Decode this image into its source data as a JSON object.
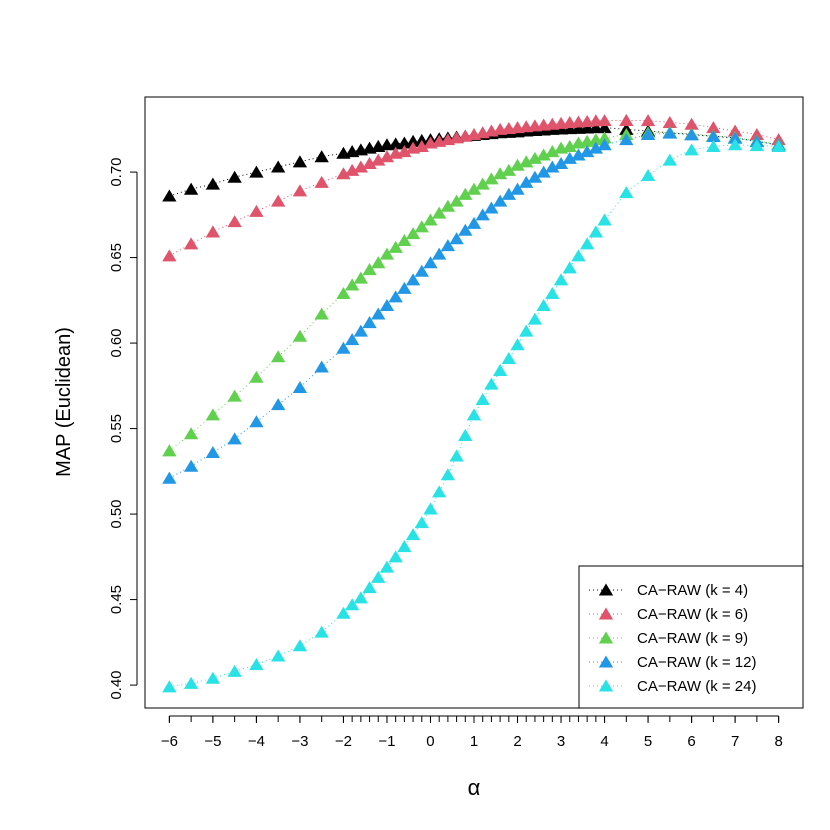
{
  "chart_data": {
    "type": "scatter-line",
    "x_label": "α",
    "y_label": "MAP (Euclidean)",
    "x": [
      -6,
      -5.5,
      -5,
      -4.5,
      -4,
      -3.5,
      -3,
      -2.5,
      -2,
      -1.8,
      -1.6,
      -1.4,
      -1.2,
      -1,
      -0.8,
      -0.6,
      -0.4,
      -0.2,
      0,
      0.2,
      0.4,
      0.6,
      0.8,
      1,
      1.2,
      1.4,
      1.6,
      1.8,
      2,
      2.2,
      2.4,
      2.6,
      2.8,
      3,
      3.2,
      3.4,
      3.6,
      3.8,
      4,
      4.5,
      5,
      5.5,
      6,
      6.5,
      7,
      7.5,
      8
    ],
    "xlim": [
      -6.56,
      8.56
    ],
    "xticks": [
      {
        "value": -6,
        "label": "−6"
      },
      {
        "value": -5,
        "label": "−5"
      },
      {
        "value": -4,
        "label": "−4"
      },
      {
        "value": -3,
        "label": "−3"
      },
      {
        "value": -2,
        "label": "−2"
      },
      {
        "value": -1,
        "label": "−1"
      },
      0,
      1,
      2,
      3,
      4,
      5,
      6,
      7,
      8
    ],
    "ylim": [
      0.3866,
      0.7439
    ],
    "yticks": [
      {
        "value": 0.4,
        "label": "0.40"
      },
      {
        "value": 0.45,
        "label": "0.45"
      },
      {
        "value": 0.5,
        "label": "0.50"
      },
      {
        "value": 0.55,
        "label": "0.55"
      },
      {
        "value": 0.6,
        "label": "0.60"
      },
      {
        "value": 0.65,
        "label": "0.65"
      },
      {
        "value": 0.7,
        "label": "0.70"
      }
    ],
    "legend_position": "bottom-right",
    "series": [
      {
        "name": "CA−RAW (k = 4)",
        "color": "#000000",
        "values": [
          0.686,
          0.69,
          0.693,
          0.697,
          0.7,
          0.703,
          0.706,
          0.709,
          0.711,
          0.712,
          0.713,
          0.714,
          0.715,
          0.716,
          0.7165,
          0.717,
          0.718,
          0.7185,
          0.719,
          0.7195,
          0.72,
          0.7205,
          0.721,
          0.7215,
          0.722,
          0.7225,
          0.723,
          0.7232,
          0.7235,
          0.724,
          0.7243,
          0.7246,
          0.725,
          0.7252,
          0.7254,
          0.7256,
          0.7258,
          0.726,
          0.726,
          0.725,
          0.724,
          0.723,
          0.722,
          0.721,
          0.72,
          0.718,
          0.716
        ]
      },
      {
        "name": "CA−RAW (k = 6)",
        "color": "#DF536B",
        "values": [
          0.651,
          0.658,
          0.665,
          0.671,
          0.677,
          0.683,
          0.689,
          0.694,
          0.699,
          0.701,
          0.703,
          0.705,
          0.707,
          0.709,
          0.711,
          0.712,
          0.714,
          0.715,
          0.717,
          0.718,
          0.719,
          0.72,
          0.721,
          0.722,
          0.723,
          0.724,
          0.725,
          0.7255,
          0.726,
          0.7265,
          0.727,
          0.7275,
          0.728,
          0.7285,
          0.729,
          0.7293,
          0.7296,
          0.73,
          0.7301,
          0.7302,
          0.7301,
          0.729,
          0.728,
          0.726,
          0.724,
          0.722,
          0.719
        ]
      },
      {
        "name": "CA−RAW (k = 9)",
        "color": "#61D04F",
        "values": [
          0.537,
          0.547,
          0.558,
          0.569,
          0.58,
          0.592,
          0.604,
          0.617,
          0.629,
          0.634,
          0.638,
          0.643,
          0.647,
          0.652,
          0.656,
          0.66,
          0.664,
          0.668,
          0.672,
          0.676,
          0.68,
          0.683,
          0.687,
          0.69,
          0.693,
          0.696,
          0.699,
          0.701,
          0.704,
          0.706,
          0.708,
          0.71,
          0.712,
          0.714,
          0.715,
          0.717,
          0.718,
          0.719,
          0.72,
          0.722,
          0.723,
          0.7232,
          0.7222,
          0.7212,
          0.7202,
          0.7182,
          0.7162
        ]
      },
      {
        "name": "CA−RAW (k = 12)",
        "color": "#2297E6",
        "values": [
          0.521,
          0.528,
          0.536,
          0.544,
          0.554,
          0.564,
          0.574,
          0.586,
          0.597,
          0.602,
          0.607,
          0.612,
          0.617,
          0.622,
          0.627,
          0.632,
          0.637,
          0.642,
          0.647,
          0.652,
          0.657,
          0.661,
          0.666,
          0.67,
          0.675,
          0.679,
          0.683,
          0.687,
          0.69,
          0.694,
          0.697,
          0.7,
          0.703,
          0.705,
          0.708,
          0.71,
          0.712,
          0.714,
          0.716,
          0.719,
          0.722,
          0.7228,
          0.7218,
          0.7208,
          0.7198,
          0.7178,
          0.7158
        ]
      },
      {
        "name": "CA−RAW (k = 24)",
        "color": "#28E2E5",
        "values": [
          0.399,
          0.401,
          0.404,
          0.408,
          0.412,
          0.417,
          0.423,
          0.431,
          0.442,
          0.447,
          0.451,
          0.457,
          0.463,
          0.469,
          0.475,
          0.481,
          0.488,
          0.495,
          0.503,
          0.513,
          0.523,
          0.534,
          0.546,
          0.558,
          0.567,
          0.576,
          0.584,
          0.591,
          0.599,
          0.607,
          0.614,
          0.622,
          0.629,
          0.637,
          0.644,
          0.651,
          0.658,
          0.665,
          0.672,
          0.688,
          0.698,
          0.707,
          0.713,
          0.715,
          0.716,
          0.7155,
          0.715
        ]
      }
    ]
  }
}
